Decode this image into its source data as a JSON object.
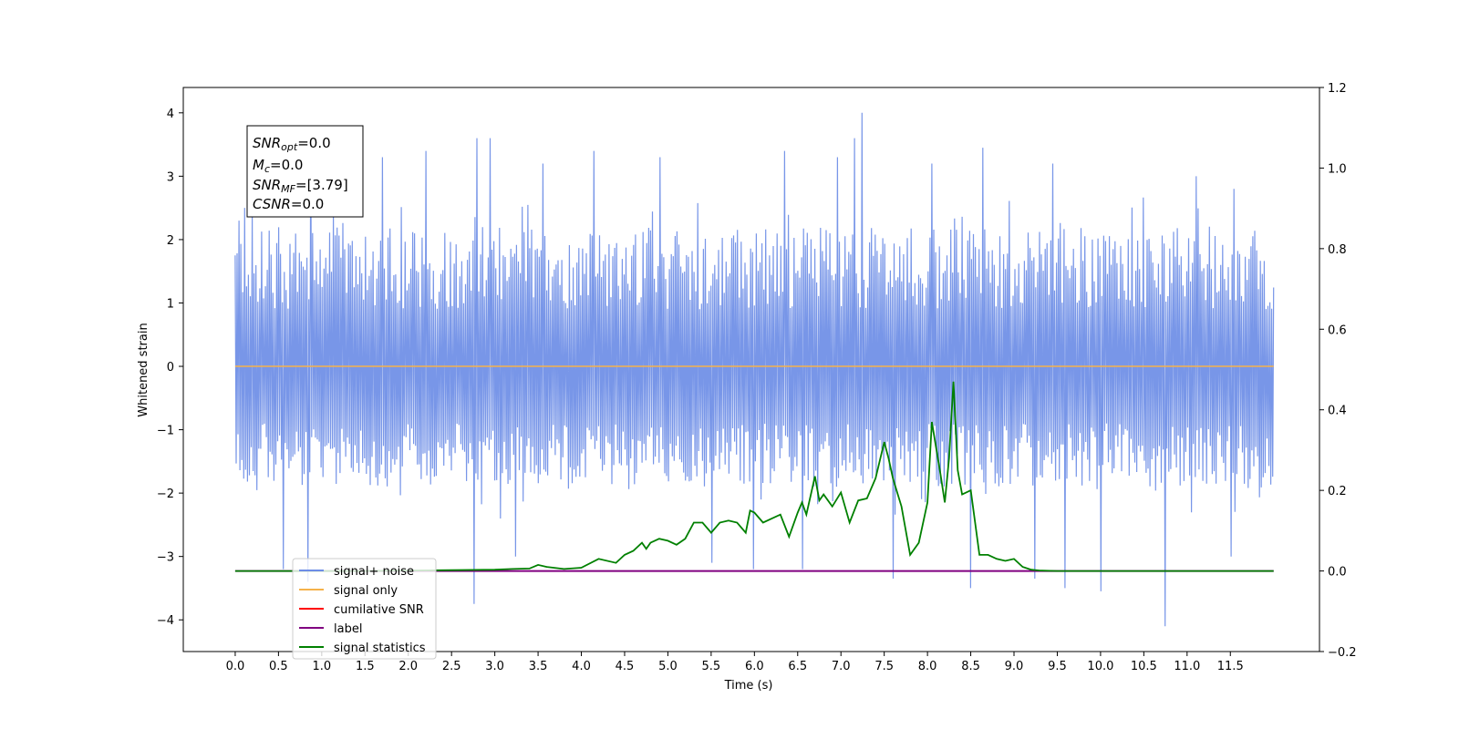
{
  "chart_data": {
    "type": "line",
    "xlabel": "Time (s)",
    "ylabel": "Whitened strain",
    "xlim": [
      -0.6,
      12.53
    ],
    "ylim": [
      -4.5,
      4.4
    ],
    "y2lim": [
      -0.2,
      1.2
    ],
    "x_ticks": [
      "0.0",
      "0.5",
      "1.0",
      "1.5",
      "2.0",
      "2.5",
      "3.0",
      "3.5",
      "4.0",
      "4.5",
      "5.0",
      "5.5",
      "6.0",
      "6.5",
      "7.0",
      "7.5",
      "8.0",
      "8.5",
      "9.0",
      "9.5",
      "10.0",
      "10.5",
      "11.0",
      "11.5"
    ],
    "x_tick_values": [
      0,
      0.5,
      1,
      1.5,
      2,
      2.5,
      3,
      3.5,
      4,
      4.5,
      5,
      5.5,
      6,
      6.5,
      7,
      7.5,
      8,
      8.5,
      9,
      9.5,
      10,
      10.5,
      11,
      11.5
    ],
    "y_ticks": [
      "4",
      "3",
      "2",
      "1",
      "0",
      "−1",
      "−2",
      "−3",
      "−4"
    ],
    "y_tick_values": [
      4,
      3,
      2,
      1,
      0,
      -1,
      -2,
      -3,
      -4
    ],
    "y2_ticks": [
      "1.2",
      "1.0",
      "0.8",
      "0.6",
      "0.4",
      "0.2",
      "0.0",
      "−0.2"
    ],
    "y2_tick_values": [
      1.2,
      1.0,
      0.8,
      0.6,
      0.4,
      0.2,
      0.0,
      -0.2
    ],
    "legend_position": "lower-left",
    "grid": false,
    "colors": {
      "signal_noise": "#6d8de6",
      "signal_only": "#f5b24a",
      "cumulative_snr": "#ff0000",
      "label": "#800080",
      "signal_statistics": "#008000"
    },
    "stats_box": {
      "line1_sym": "SNR",
      "line1_sub": "opt",
      "line1_val": "=0.0",
      "line2_sym": "M",
      "line2_sub": "c",
      "line2_val": "=0.0",
      "line3_sym": "SNR",
      "line3_sub": "MF",
      "line3_val": "=[3.79]",
      "line4_sym": "CSNR",
      "line4_val": "=0.0"
    },
    "series": [
      {
        "name": "signal+ noise",
        "axis": "left",
        "style": "noise-band",
        "x_range": [
          0,
          12.0
        ],
        "typical_range": [
          -1.9,
          2.2
        ],
        "spikes": [
          [
            0.05,
            2.3
          ],
          [
            0.1,
            2.5
          ],
          [
            0.2,
            2.4
          ],
          [
            0.87,
            3.8
          ],
          [
            1.7,
            3.3
          ],
          [
            2.2,
            3.4
          ],
          [
            2.8,
            3.6
          ],
          [
            2.95,
            3.6
          ],
          [
            3.55,
            3.2
          ],
          [
            4.15,
            3.4
          ],
          [
            4.9,
            3.3
          ],
          [
            6.35,
            3.4
          ],
          [
            6.95,
            3.3
          ],
          [
            7.15,
            3.6
          ],
          [
            7.25,
            4.0
          ],
          [
            8.05,
            3.2
          ],
          [
            8.65,
            3.45
          ],
          [
            9.45,
            3.2
          ],
          [
            11.1,
            3.0
          ],
          [
            11.55,
            2.8
          ],
          [
            0.55,
            -3.2
          ],
          [
            0.85,
            -3.4
          ],
          [
            2.75,
            -3.75
          ],
          [
            3.25,
            -3.0
          ],
          [
            5.5,
            -3.1
          ],
          [
            6.0,
            -3.2
          ],
          [
            6.55,
            -3.2
          ],
          [
            7.6,
            -3.35
          ],
          [
            8.5,
            -3.5
          ],
          [
            9.25,
            -3.35
          ],
          [
            9.6,
            -3.5
          ],
          [
            10.0,
            -3.55
          ],
          [
            10.75,
            -4.1
          ],
          [
            11.5,
            -3.0
          ]
        ]
      },
      {
        "name": "signal only",
        "axis": "left",
        "x": [
          0,
          12.0
        ],
        "y": [
          0,
          0
        ]
      },
      {
        "name": "cumilative SNR",
        "axis": "left",
        "x": [],
        "y": []
      },
      {
        "name": "label",
        "axis": "right",
        "x": [
          0,
          12.0
        ],
        "y": [
          0,
          0
        ]
      },
      {
        "name": "signal statistics",
        "axis": "right",
        "x": [
          0,
          0.5,
          1.0,
          1.5,
          2.0,
          2.5,
          3.0,
          3.2,
          3.4,
          3.5,
          3.6,
          3.8,
          4.0,
          4.2,
          4.4,
          4.5,
          4.6,
          4.7,
          4.75,
          4.8,
          4.9,
          5.0,
          5.1,
          5.2,
          5.3,
          5.4,
          5.5,
          5.6,
          5.7,
          5.8,
          5.9,
          5.95,
          6.0,
          6.1,
          6.2,
          6.3,
          6.4,
          6.5,
          6.55,
          6.6,
          6.7,
          6.75,
          6.8,
          6.9,
          7.0,
          7.1,
          7.2,
          7.3,
          7.4,
          7.5,
          7.55,
          7.6,
          7.7,
          7.8,
          7.9,
          8.0,
          8.05,
          8.15,
          8.2,
          8.25,
          8.3,
          8.35,
          8.4,
          8.5,
          8.6,
          8.7,
          8.8,
          8.9,
          9.0,
          9.1,
          9.2,
          9.3,
          9.5,
          10.0,
          11.0,
          12.0
        ],
        "y": [
          0,
          0,
          0,
          0,
          0.001,
          0.002,
          0.003,
          0.005,
          0.006,
          0.015,
          0.01,
          0.005,
          0.008,
          0.03,
          0.02,
          0.04,
          0.05,
          0.07,
          0.055,
          0.07,
          0.08,
          0.075,
          0.065,
          0.08,
          0.12,
          0.12,
          0.095,
          0.12,
          0.125,
          0.12,
          0.095,
          0.15,
          0.145,
          0.12,
          0.13,
          0.14,
          0.085,
          0.145,
          0.17,
          0.14,
          0.235,
          0.175,
          0.19,
          0.16,
          0.195,
          0.12,
          0.175,
          0.18,
          0.23,
          0.32,
          0.28,
          0.23,
          0.16,
          0.04,
          0.07,
          0.17,
          0.37,
          0.24,
          0.17,
          0.28,
          0.47,
          0.25,
          0.19,
          0.2,
          0.04,
          0.04,
          0.03,
          0.025,
          0.03,
          0.01,
          0.003,
          0.001,
          0,
          0,
          0,
          0
        ]
      }
    ]
  }
}
